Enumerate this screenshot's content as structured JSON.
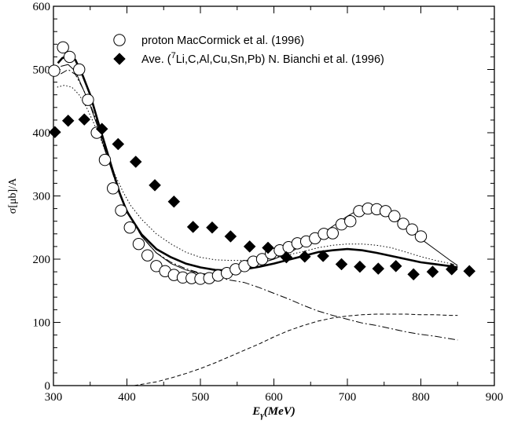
{
  "chart_data": {
    "type": "scatter",
    "title": "",
    "xlabel": "E",
    "xlabel_subscript": "γ",
    "xlabel_unit": "(MeV)",
    "ylabel": "σ[μb]/A",
    "xlim": [
      300,
      900
    ],
    "ylim": [
      0,
      600
    ],
    "x_ticks": [
      300,
      400,
      500,
      600,
      700,
      800,
      900
    ],
    "y_ticks": [
      0,
      100,
      200,
      300,
      400,
      500,
      600
    ],
    "grid": false,
    "legend_position": "top-right",
    "series": [
      {
        "name": "proton MacCormick et al. (1996)",
        "legend_parts": [
          "proton MacCormick et al. (1996)"
        ],
        "marker": "open-circle",
        "points": [
          [
            301,
            498
          ],
          [
            313,
            535
          ],
          [
            322,
            520
          ],
          [
            335,
            500
          ],
          [
            347,
            452
          ],
          [
            359,
            400
          ],
          [
            370,
            357
          ],
          [
            381,
            312
          ],
          [
            392,
            277
          ],
          [
            404,
            250
          ],
          [
            416,
            224
          ],
          [
            428,
            206
          ],
          [
            440,
            189
          ],
          [
            452,
            181
          ],
          [
            464,
            175
          ],
          [
            476,
            171
          ],
          [
            488,
            170
          ],
          [
            500,
            169
          ],
          [
            512,
            170
          ],
          [
            524,
            174
          ],
          [
            536,
            178
          ],
          [
            548,
            184
          ],
          [
            560,
            189
          ],
          [
            572,
            196
          ],
          [
            584,
            200
          ],
          [
            596,
            209
          ],
          [
            608,
            214
          ],
          [
            620,
            219
          ],
          [
            632,
            225
          ],
          [
            644,
            228
          ],
          [
            656,
            233
          ],
          [
            668,
            240
          ],
          [
            680,
            241
          ],
          [
            692,
            255
          ],
          [
            704,
            260
          ],
          [
            716,
            276
          ],
          [
            728,
            280
          ],
          [
            740,
            279
          ],
          [
            752,
            276
          ],
          [
            764,
            268
          ],
          [
            776,
            256
          ],
          [
            788,
            247
          ],
          [
            800,
            236
          ]
        ]
      },
      {
        "name": "Ave. (7Li,C,Al,Cu,Sn,Pb) N. Bianchi et al. (1996)",
        "legend_parts": [
          "Ave. (",
          "7",
          "Li,C,Al,Cu,Sn,Pb) N. Bianchi et al. (1996)"
        ],
        "marker": "filled-diamond",
        "points": [
          [
            302,
            401
          ],
          [
            320,
            419
          ],
          [
            342,
            421
          ],
          [
            366,
            406
          ],
          [
            388,
            382
          ],
          [
            412,
            354
          ],
          [
            438,
            317
          ],
          [
            464,
            291
          ],
          [
            490,
            251
          ],
          [
            516,
            250
          ],
          [
            541,
            236
          ],
          [
            567,
            220
          ],
          [
            592,
            218
          ],
          [
            617,
            203
          ],
          [
            642,
            204
          ],
          [
            667,
            205
          ],
          [
            692,
            192
          ],
          [
            717,
            188
          ],
          [
            742,
            185
          ],
          [
            766,
            189
          ],
          [
            790,
            176
          ],
          [
            816,
            180
          ],
          [
            842,
            184
          ],
          [
            866,
            181
          ]
        ]
      }
    ],
    "curves": [
      {
        "name": "thick-solid",
        "points": [
          [
            306,
            510
          ],
          [
            312,
            518
          ],
          [
            320,
            522
          ],
          [
            330,
            515
          ],
          [
            340,
            490
          ],
          [
            350,
            460
          ],
          [
            360,
            420
          ],
          [
            370,
            382
          ],
          [
            380,
            343
          ],
          [
            390,
            305
          ],
          [
            400,
            275
          ],
          [
            420,
            239
          ],
          [
            440,
            216
          ],
          [
            460,
            203
          ],
          [
            480,
            193
          ],
          [
            500,
            187
          ],
          [
            520,
            183
          ],
          [
            540,
            182
          ],
          [
            560,
            184
          ],
          [
            580,
            188
          ],
          [
            600,
            193
          ],
          [
            620,
            199
          ],
          [
            640,
            205
          ],
          [
            660,
            211
          ],
          [
            680,
            214
          ],
          [
            700,
            216
          ],
          [
            720,
            214
          ],
          [
            740,
            210
          ],
          [
            760,
            205
          ],
          [
            780,
            200
          ],
          [
            800,
            195
          ],
          [
            820,
            192
          ],
          [
            840,
            189
          ],
          [
            850,
            187
          ]
        ]
      },
      {
        "name": "thin-solid",
        "points": [
          [
            310,
            505
          ],
          [
            320,
            508
          ],
          [
            330,
            497
          ],
          [
            340,
            470
          ],
          [
            350,
            443
          ],
          [
            360,
            410
          ],
          [
            370,
            373
          ],
          [
            380,
            338
          ],
          [
            390,
            305
          ],
          [
            400,
            278
          ],
          [
            420,
            236
          ],
          [
            440,
            210
          ],
          [
            460,
            193
          ],
          [
            480,
            183
          ],
          [
            500,
            177
          ],
          [
            520,
            176
          ],
          [
            540,
            178
          ],
          [
            560,
            185
          ],
          [
            580,
            193
          ],
          [
            600,
            200
          ],
          [
            620,
            210
          ],
          [
            640,
            222
          ],
          [
            660,
            236
          ],
          [
            680,
            252
          ],
          [
            700,
            268
          ],
          [
            715,
            278
          ],
          [
            730,
            280
          ],
          [
            745,
            277
          ],
          [
            760,
            268
          ],
          [
            780,
            250
          ],
          [
            800,
            232
          ],
          [
            820,
            215
          ],
          [
            840,
            198
          ],
          [
            850,
            190
          ]
        ]
      },
      {
        "name": "dotted",
        "points": [
          [
            305,
            472
          ],
          [
            315,
            475
          ],
          [
            325,
            472
          ],
          [
            335,
            460
          ],
          [
            345,
            440
          ],
          [
            355,
            415
          ],
          [
            365,
            388
          ],
          [
            375,
            357
          ],
          [
            385,
            330
          ],
          [
            395,
            306
          ],
          [
            405,
            285
          ],
          [
            420,
            263
          ],
          [
            440,
            240
          ],
          [
            460,
            224
          ],
          [
            480,
            211
          ],
          [
            500,
            203
          ],
          [
            520,
            199
          ],
          [
            540,
            198
          ],
          [
            560,
            198
          ],
          [
            580,
            200
          ],
          [
            600,
            203
          ],
          [
            620,
            207
          ],
          [
            640,
            212
          ],
          [
            660,
            218
          ],
          [
            680,
            222
          ],
          [
            700,
            224
          ],
          [
            720,
            224
          ],
          [
            740,
            222
          ],
          [
            760,
            218
          ],
          [
            780,
            211
          ],
          [
            800,
            204
          ],
          [
            820,
            198
          ],
          [
            840,
            193
          ],
          [
            850,
            190
          ]
        ]
      },
      {
        "name": "dash-dot",
        "points": [
          [
            310,
            493
          ],
          [
            320,
            500
          ],
          [
            330,
            492
          ],
          [
            340,
            470
          ],
          [
            350,
            445
          ],
          [
            360,
            414
          ],
          [
            370,
            375
          ],
          [
            380,
            338
          ],
          [
            390,
            302
          ],
          [
            400,
            275
          ],
          [
            420,
            236
          ],
          [
            440,
            210
          ],
          [
            460,
            195
          ],
          [
            480,
            185
          ],
          [
            500,
            178
          ],
          [
            520,
            172
          ],
          [
            540,
            167
          ],
          [
            560,
            163
          ],
          [
            580,
            155
          ],
          [
            600,
            146
          ],
          [
            620,
            137
          ],
          [
            640,
            127
          ],
          [
            660,
            118
          ],
          [
            680,
            111
          ],
          [
            700,
            105
          ],
          [
            720,
            99
          ],
          [
            740,
            95
          ],
          [
            760,
            90
          ],
          [
            780,
            85
          ],
          [
            800,
            81
          ],
          [
            820,
            78
          ],
          [
            840,
            74
          ],
          [
            850,
            72
          ]
        ]
      },
      {
        "name": "dashed",
        "points": [
          [
            410,
            0
          ],
          [
            420,
            2
          ],
          [
            440,
            6
          ],
          [
            460,
            12
          ],
          [
            480,
            19
          ],
          [
            500,
            27
          ],
          [
            520,
            36
          ],
          [
            540,
            46
          ],
          [
            560,
            56
          ],
          [
            580,
            66
          ],
          [
            600,
            77
          ],
          [
            620,
            87
          ],
          [
            640,
            95
          ],
          [
            660,
            102
          ],
          [
            680,
            107
          ],
          [
            700,
            110
          ],
          [
            720,
            112
          ],
          [
            740,
            113
          ],
          [
            760,
            113
          ],
          [
            780,
            113
          ],
          [
            800,
            112
          ],
          [
            820,
            112
          ],
          [
            840,
            111
          ],
          [
            850,
            111
          ]
        ]
      }
    ]
  }
}
